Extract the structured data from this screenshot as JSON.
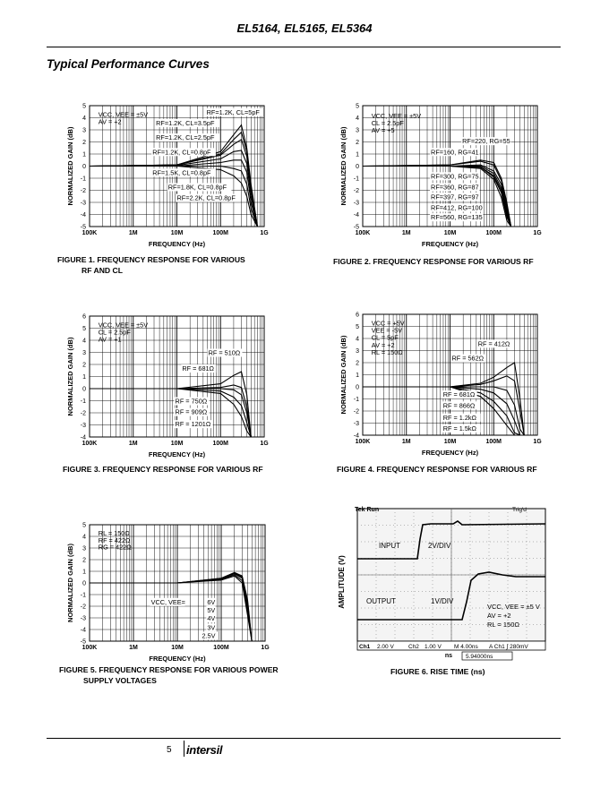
{
  "header": {
    "title": "EL5164, EL5165, EL5364"
  },
  "section": {
    "title": "Typical Performance Curves"
  },
  "footer": {
    "page": "5",
    "logo": "intersil"
  },
  "charts": [
    {
      "caption1": "FIGURE 1.  FREQUENCY RESPONSE FOR VARIOUS",
      "caption2": "RF AND CL",
      "ylabel": "NORMALIZED GAIN (dB)",
      "xlabel": "FREQUENCY (Hz)",
      "xticks": [
        "100K",
        "1M",
        "10M",
        "100M",
        "1G"
      ],
      "yticks": [
        "5",
        "4",
        "3",
        "2",
        "1",
        "0",
        "-1",
        "-2",
        "-3",
        "-4",
        "-5"
      ],
      "notes": [
        "VCC, VEE = ±5V",
        "AV = +2"
      ],
      "labels": [
        "RF=1.2K, CL=5pF",
        "RF=1.2K, CL=3.5pF",
        "RF=1.2K, CL=2.5pF",
        "RF=1.2K, CL=0.8pF",
        "RF=1.5K, CL=0.8pF",
        "RF=1.8K, CL=0.8pF",
        "RF=2.2K, CL=0.8pF"
      ]
    },
    {
      "caption1": "FIGURE 2.  FREQUENCY RESPONSE FOR VARIOUS RF",
      "caption2": "",
      "ylabel": "NORMALIZED GAIN (dB)",
      "xlabel": "FREQUENCY (Hz)",
      "xticks": [
        "100K",
        "1M",
        "10M",
        "100M",
        "1G"
      ],
      "yticks": [
        "5",
        "4",
        "3",
        "2",
        "1",
        "0",
        "-1",
        "-2",
        "-3",
        "-4",
        "-5"
      ],
      "notes": [
        "VCC, VEE = ±5V",
        "CL = 2.5pF",
        "AV = +5"
      ],
      "labels": [
        "RF=220, RG=55",
        "RF=160, RG=41",
        "RF=300, RG=75",
        "RF=360, RG=87",
        "RF=397, RG=97",
        "RF=412, RG=100",
        "RF=560, RG=135"
      ]
    },
    {
      "caption1": "FIGURE 3.  FREQUENCY RESPONSE FOR VARIOUS RF",
      "caption2": "",
      "ylabel": "NORMALIZED GAIN (dB)",
      "xlabel": "FREQUENCY (Hz)",
      "xticks": [
        "100K",
        "1M",
        "10M",
        "100M",
        "1G"
      ],
      "yticks": [
        "6",
        "5",
        "4",
        "3",
        "2",
        "1",
        "0",
        "-1",
        "-2",
        "-3",
        "-4"
      ],
      "notes": [
        "VCC, VEE = ±5V",
        "CL = 2.5pF",
        "AV = +1"
      ],
      "labels": [
        "RF = 510Ω",
        "RF = 681Ω",
        "RF = 750Ω",
        "RF = 909Ω",
        "RF = 1201Ω"
      ]
    },
    {
      "caption1": "FIGURE 4.  FREQUENCY RESPONSE FOR VARIOUS RF",
      "caption2": "",
      "ylabel": "NORMALIZED GAIN (dB)",
      "xlabel": "FREQUENCY (Hz)",
      "xticks": [
        "100K",
        "1M",
        "10M",
        "100M",
        "1G"
      ],
      "yticks": [
        "6",
        "5",
        "4",
        "3",
        "2",
        "1",
        "0",
        "-1",
        "-2",
        "-3",
        "-4"
      ],
      "notes": [
        "VCC = +5V",
        "VEE = -5V",
        "CL = 5pF",
        "AV = +2",
        "RL = 150Ω"
      ],
      "labels": [
        "RF = 412Ω",
        "RF = 562Ω",
        "RF = 681Ω",
        "RF = 866Ω",
        "RF = 1.2kΩ",
        "RF = 1.5kΩ"
      ]
    },
    {
      "caption1": "FIGURE 5.  FREQUENCY RESPONSE FOR VARIOUS POWER",
      "caption2": "SUPPLY VOLTAGES",
      "ylabel": "NORMALIZED GAIN (dB)",
      "xlabel": "FREQUENCY (Hz)",
      "xticks": [
        "100K",
        "1M",
        "10M",
        "100M",
        "1G"
      ],
      "yticks": [
        "5",
        "4",
        "3",
        "2",
        "1",
        "0",
        "-1",
        "-2",
        "-3",
        "-4",
        "-5"
      ],
      "notes": [
        "RL = 150Ω",
        "RF = 422Ω",
        "RG = 422Ω"
      ],
      "labels": [
        "VCC, VEE=",
        "6V",
        "5V",
        "4V",
        "3V",
        "2.5V"
      ]
    }
  ],
  "scope": {
    "caption": "FIGURE 6.  RISE TIME (ns)",
    "ylabel": "AMPLITUDE (V)",
    "xlabel": "ns",
    "top_left": "Tek Run",
    "top_right": "Trig'd",
    "input_label": "INPUT",
    "input_scale": "2V/DIV",
    "output_label": "OUTPUT",
    "output_scale": "1V/DIV",
    "notes": [
      "VCC, VEE = ±5 V",
      "AV = +2",
      "RL = 150Ω"
    ],
    "status": [
      "Ch1",
      "2.00 V",
      "Ch2",
      "1.00 V",
      "M 4.00ns",
      "A  Ch1  ∫  280mV"
    ],
    "cursor": "5.94000ns"
  },
  "chart_data": [
    {
      "type": "line",
      "title": "FIGURE 1. FREQUENCY RESPONSE FOR VARIOUS RF AND CL",
      "xlabel": "FREQUENCY (Hz)",
      "ylabel": "NORMALIZED GAIN (dB)",
      "xscale": "log",
      "xlim": [
        100000,
        1000000000
      ],
      "ylim": [
        -5,
        5
      ],
      "grid": true,
      "series": [
        {
          "name": "RF=1.2K, CL=5pF",
          "x": [
            100000,
            10000000,
            100000000,
            200000000,
            300000000,
            400000000,
            500000000,
            700000000
          ],
          "y": [
            0,
            0.1,
            1.2,
            2.6,
            3.4,
            1.5,
            -1.5,
            -5
          ]
        },
        {
          "name": "RF=1.2K, CL=3.5pF",
          "x": [
            100000,
            10000000,
            100000000,
            200000000,
            300000000,
            400000000,
            500000000,
            700000000
          ],
          "y": [
            0,
            0.1,
            1.0,
            2.2,
            2.8,
            1.2,
            -1.8,
            -5
          ]
        },
        {
          "name": "RF=1.2K, CL=2.5pF",
          "x": [
            100000,
            10000000,
            100000000,
            200000000,
            300000000,
            400000000,
            500000000,
            700000000
          ],
          "y": [
            0,
            0.1,
            0.9,
            1.8,
            2.2,
            0.8,
            -2,
            -5
          ]
        },
        {
          "name": "RF=1.2K, CL=0.8pF",
          "x": [
            100000,
            10000000,
            100000000,
            200000000,
            300000000,
            400000000,
            500000000,
            700000000
          ],
          "y": [
            0,
            0.05,
            0.6,
            1.2,
            1.3,
            0.2,
            -2.5,
            -5
          ]
        },
        {
          "name": "RF=1.5K, CL=0.8pF",
          "x": [
            100000,
            10000000,
            100000000,
            200000000,
            300000000,
            400000000,
            500000000,
            700000000
          ],
          "y": [
            0,
            0,
            0.3,
            0.5,
            0.5,
            -0.5,
            -3,
            -5
          ]
        },
        {
          "name": "RF=1.8K, CL=0.8pF",
          "x": [
            100000,
            10000000,
            100000000,
            200000000,
            300000000,
            400000000,
            500000000,
            700000000
          ],
          "y": [
            0,
            0,
            0,
            -0.2,
            -0.4,
            -1.5,
            -3.5,
            -5
          ]
        },
        {
          "name": "RF=2.2K, CL=0.8pF",
          "x": [
            100000,
            10000000,
            100000000,
            200000000,
            300000000,
            400000000,
            500000000,
            700000000
          ],
          "y": [
            0,
            0,
            -0.3,
            -0.8,
            -1.4,
            -2.5,
            -4,
            -5
          ]
        }
      ]
    },
    {
      "type": "line",
      "title": "FIGURE 2. FREQUENCY RESPONSE FOR VARIOUS RF",
      "xlabel": "FREQUENCY (Hz)",
      "ylabel": "NORMALIZED GAIN (dB)",
      "xscale": "log",
      "xlim": [
        100000,
        1000000000
      ],
      "ylim": [
        -5,
        5
      ],
      "grid": true,
      "series": [
        {
          "name": "RF=220, RG=55",
          "x": [
            100000,
            10000000,
            50000000,
            100000000,
            150000000,
            200000000,
            250000000,
            300000000
          ],
          "y": [
            0,
            0.1,
            0.5,
            0.3,
            -1,
            -3,
            -5,
            -5
          ]
        },
        {
          "name": "RF=160, RG=41",
          "x": [
            100000,
            10000000,
            50000000,
            100000000,
            150000000,
            200000000,
            250000000,
            300000000
          ],
          "y": [
            0,
            0.1,
            0.4,
            0.1,
            -1.2,
            -3.2,
            -5,
            -5
          ]
        },
        {
          "name": "RF=300, RG=75",
          "x": [
            100000,
            10000000,
            50000000,
            100000000,
            150000000,
            200000000,
            250000000,
            300000000
          ],
          "y": [
            0,
            0,
            0.1,
            -0.4,
            -1.5,
            -3.5,
            -5,
            -5
          ]
        },
        {
          "name": "RF=360, RG=87",
          "x": [
            100000,
            10000000,
            50000000,
            100000000,
            150000000,
            200000000,
            250000000,
            300000000
          ],
          "y": [
            0,
            0,
            0,
            -0.6,
            -1.8,
            -3.8,
            -5,
            -5
          ]
        },
        {
          "name": "RF=397, RG=97",
          "x": [
            100000,
            10000000,
            50000000,
            100000000,
            150000000,
            200000000,
            250000000,
            300000000
          ],
          "y": [
            0,
            0,
            -0.1,
            -0.8,
            -2,
            -4,
            -5,
            -5
          ]
        },
        {
          "name": "RF=412, RG=100",
          "x": [
            100000,
            10000000,
            50000000,
            100000000,
            150000000,
            200000000,
            250000000,
            300000000
          ],
          "y": [
            0,
            0,
            -0.1,
            -0.9,
            -2.2,
            -4.2,
            -5,
            -5
          ]
        },
        {
          "name": "RF=560, RG=135",
          "x": [
            100000,
            10000000,
            50000000,
            100000000,
            150000000,
            200000000,
            250000000,
            300000000
          ],
          "y": [
            0,
            0,
            -0.2,
            -1.1,
            -2.6,
            -4.5,
            -5,
            -5
          ]
        }
      ]
    },
    {
      "type": "line",
      "title": "FIGURE 3. FREQUENCY RESPONSE FOR VARIOUS RF",
      "xlabel": "FREQUENCY (Hz)",
      "ylabel": "NORMALIZED GAIN (dB)",
      "xscale": "log",
      "xlim": [
        100000,
        1000000000
      ],
      "ylim": [
        -4,
        6
      ],
      "grid": true,
      "series": [
        {
          "name": "RF = 510Ω",
          "x": [
            100000,
            10000000,
            100000000,
            200000000,
            300000000,
            400000000,
            500000000
          ],
          "y": [
            0,
            0,
            0.4,
            1.1,
            1.4,
            -0.5,
            -4
          ]
        },
        {
          "name": "RF = 681Ω",
          "x": [
            100000,
            10000000,
            100000000,
            200000000,
            300000000,
            400000000,
            500000000
          ],
          "y": [
            0,
            0,
            0.1,
            0.3,
            0.1,
            -1.5,
            -4
          ]
        },
        {
          "name": "RF = 750Ω",
          "x": [
            100000,
            10000000,
            100000000,
            200000000,
            300000000,
            400000000,
            500000000
          ],
          "y": [
            0,
            0,
            0,
            -0.1,
            -0.5,
            -2,
            -4
          ]
        },
        {
          "name": "RF = 909Ω",
          "x": [
            100000,
            10000000,
            100000000,
            200000000,
            300000000,
            400000000,
            500000000
          ],
          "y": [
            0,
            0,
            -0.2,
            -0.7,
            -1.4,
            -2.8,
            -4
          ]
        },
        {
          "name": "RF = 1201Ω",
          "x": [
            100000,
            10000000,
            100000000,
            200000000,
            300000000,
            400000000,
            500000000
          ],
          "y": [
            0,
            0,
            -0.4,
            -1.3,
            -2.3,
            -3.5,
            -4
          ]
        }
      ]
    },
    {
      "type": "line",
      "title": "FIGURE 4. FREQUENCY RESPONSE FOR VARIOUS RF",
      "xlabel": "FREQUENCY (Hz)",
      "ylabel": "NORMALIZED GAIN (dB)",
      "xscale": "log",
      "xlim": [
        100000,
        1000000000
      ],
      "ylim": [
        -4,
        6
      ],
      "grid": true,
      "series": [
        {
          "name": "RF = 412Ω",
          "x": [
            100000,
            10000000,
            50000000,
            100000000,
            200000000,
            300000000,
            400000000,
            500000000
          ],
          "y": [
            0,
            0,
            0.3,
            0.8,
            1.6,
            2.0,
            -1,
            -4
          ]
        },
        {
          "name": "RF = 562Ω",
          "x": [
            100000,
            10000000,
            50000000,
            100000000,
            200000000,
            300000000,
            400000000,
            500000000
          ],
          "y": [
            0,
            0,
            0.2,
            0.5,
            0.9,
            0.5,
            -2,
            -4
          ]
        },
        {
          "name": "RF = 681Ω",
          "x": [
            100000,
            10000000,
            50000000,
            100000000,
            200000000,
            300000000,
            400000000,
            500000000
          ],
          "y": [
            0,
            0,
            0,
            0,
            -0.3,
            -1.5,
            -3.5,
            -4
          ]
        },
        {
          "name": "RF = 866Ω",
          "x": [
            100000,
            10000000,
            50000000,
            100000000,
            200000000,
            300000000,
            400000000,
            500000000
          ],
          "y": [
            0,
            0,
            -0.2,
            -0.5,
            -1.4,
            -2.8,
            -4,
            -4
          ]
        },
        {
          "name": "RF = 1.2kΩ",
          "x": [
            100000,
            10000000,
            50000000,
            100000000,
            200000000,
            300000000,
            400000000,
            500000000
          ],
          "y": [
            0,
            0,
            -0.5,
            -1.2,
            -2.4,
            -3.8,
            -4,
            -4
          ]
        },
        {
          "name": "RF = 1.5kΩ",
          "x": [
            100000,
            10000000,
            50000000,
            100000000,
            200000000,
            300000000,
            400000000,
            500000000
          ],
          "y": [
            0,
            0,
            -0.8,
            -1.8,
            -3.2,
            -4,
            -4,
            -4
          ]
        }
      ]
    },
    {
      "type": "line",
      "title": "FIGURE 5. FREQUENCY RESPONSE FOR VARIOUS POWER SUPPLY VOLTAGES",
      "xlabel": "FREQUENCY (Hz)",
      "ylabel": "NORMALIZED GAIN (dB)",
      "xscale": "log",
      "xlim": [
        100000,
        1000000000
      ],
      "ylim": [
        -5,
        5
      ],
      "grid": true,
      "series": [
        {
          "name": "6V",
          "x": [
            100000,
            10000000,
            100000000,
            200000000,
            300000000,
            400000000,
            500000000
          ],
          "y": [
            0,
            0,
            0.4,
            0.9,
            0.6,
            -1.5,
            -5
          ]
        },
        {
          "name": "5V",
          "x": [
            100000,
            10000000,
            100000000,
            200000000,
            300000000,
            400000000,
            500000000
          ],
          "y": [
            0,
            0,
            0.4,
            0.85,
            0.5,
            -1.7,
            -5
          ]
        },
        {
          "name": "4V",
          "x": [
            100000,
            10000000,
            100000000,
            200000000,
            300000000,
            400000000,
            500000000
          ],
          "y": [
            0,
            0,
            0.35,
            0.8,
            0.4,
            -2,
            -5
          ]
        },
        {
          "name": "3V",
          "x": [
            100000,
            10000000,
            100000000,
            200000000,
            300000000,
            400000000,
            500000000
          ],
          "y": [
            0,
            0,
            0.3,
            0.7,
            0.2,
            -2.4,
            -5
          ]
        },
        {
          "name": "2.5V",
          "x": [
            100000,
            10000000,
            100000000,
            200000000,
            300000000,
            400000000,
            500000000
          ],
          "y": [
            0,
            0,
            0.25,
            0.6,
            0,
            -2.8,
            -5
          ]
        }
      ]
    }
  ]
}
